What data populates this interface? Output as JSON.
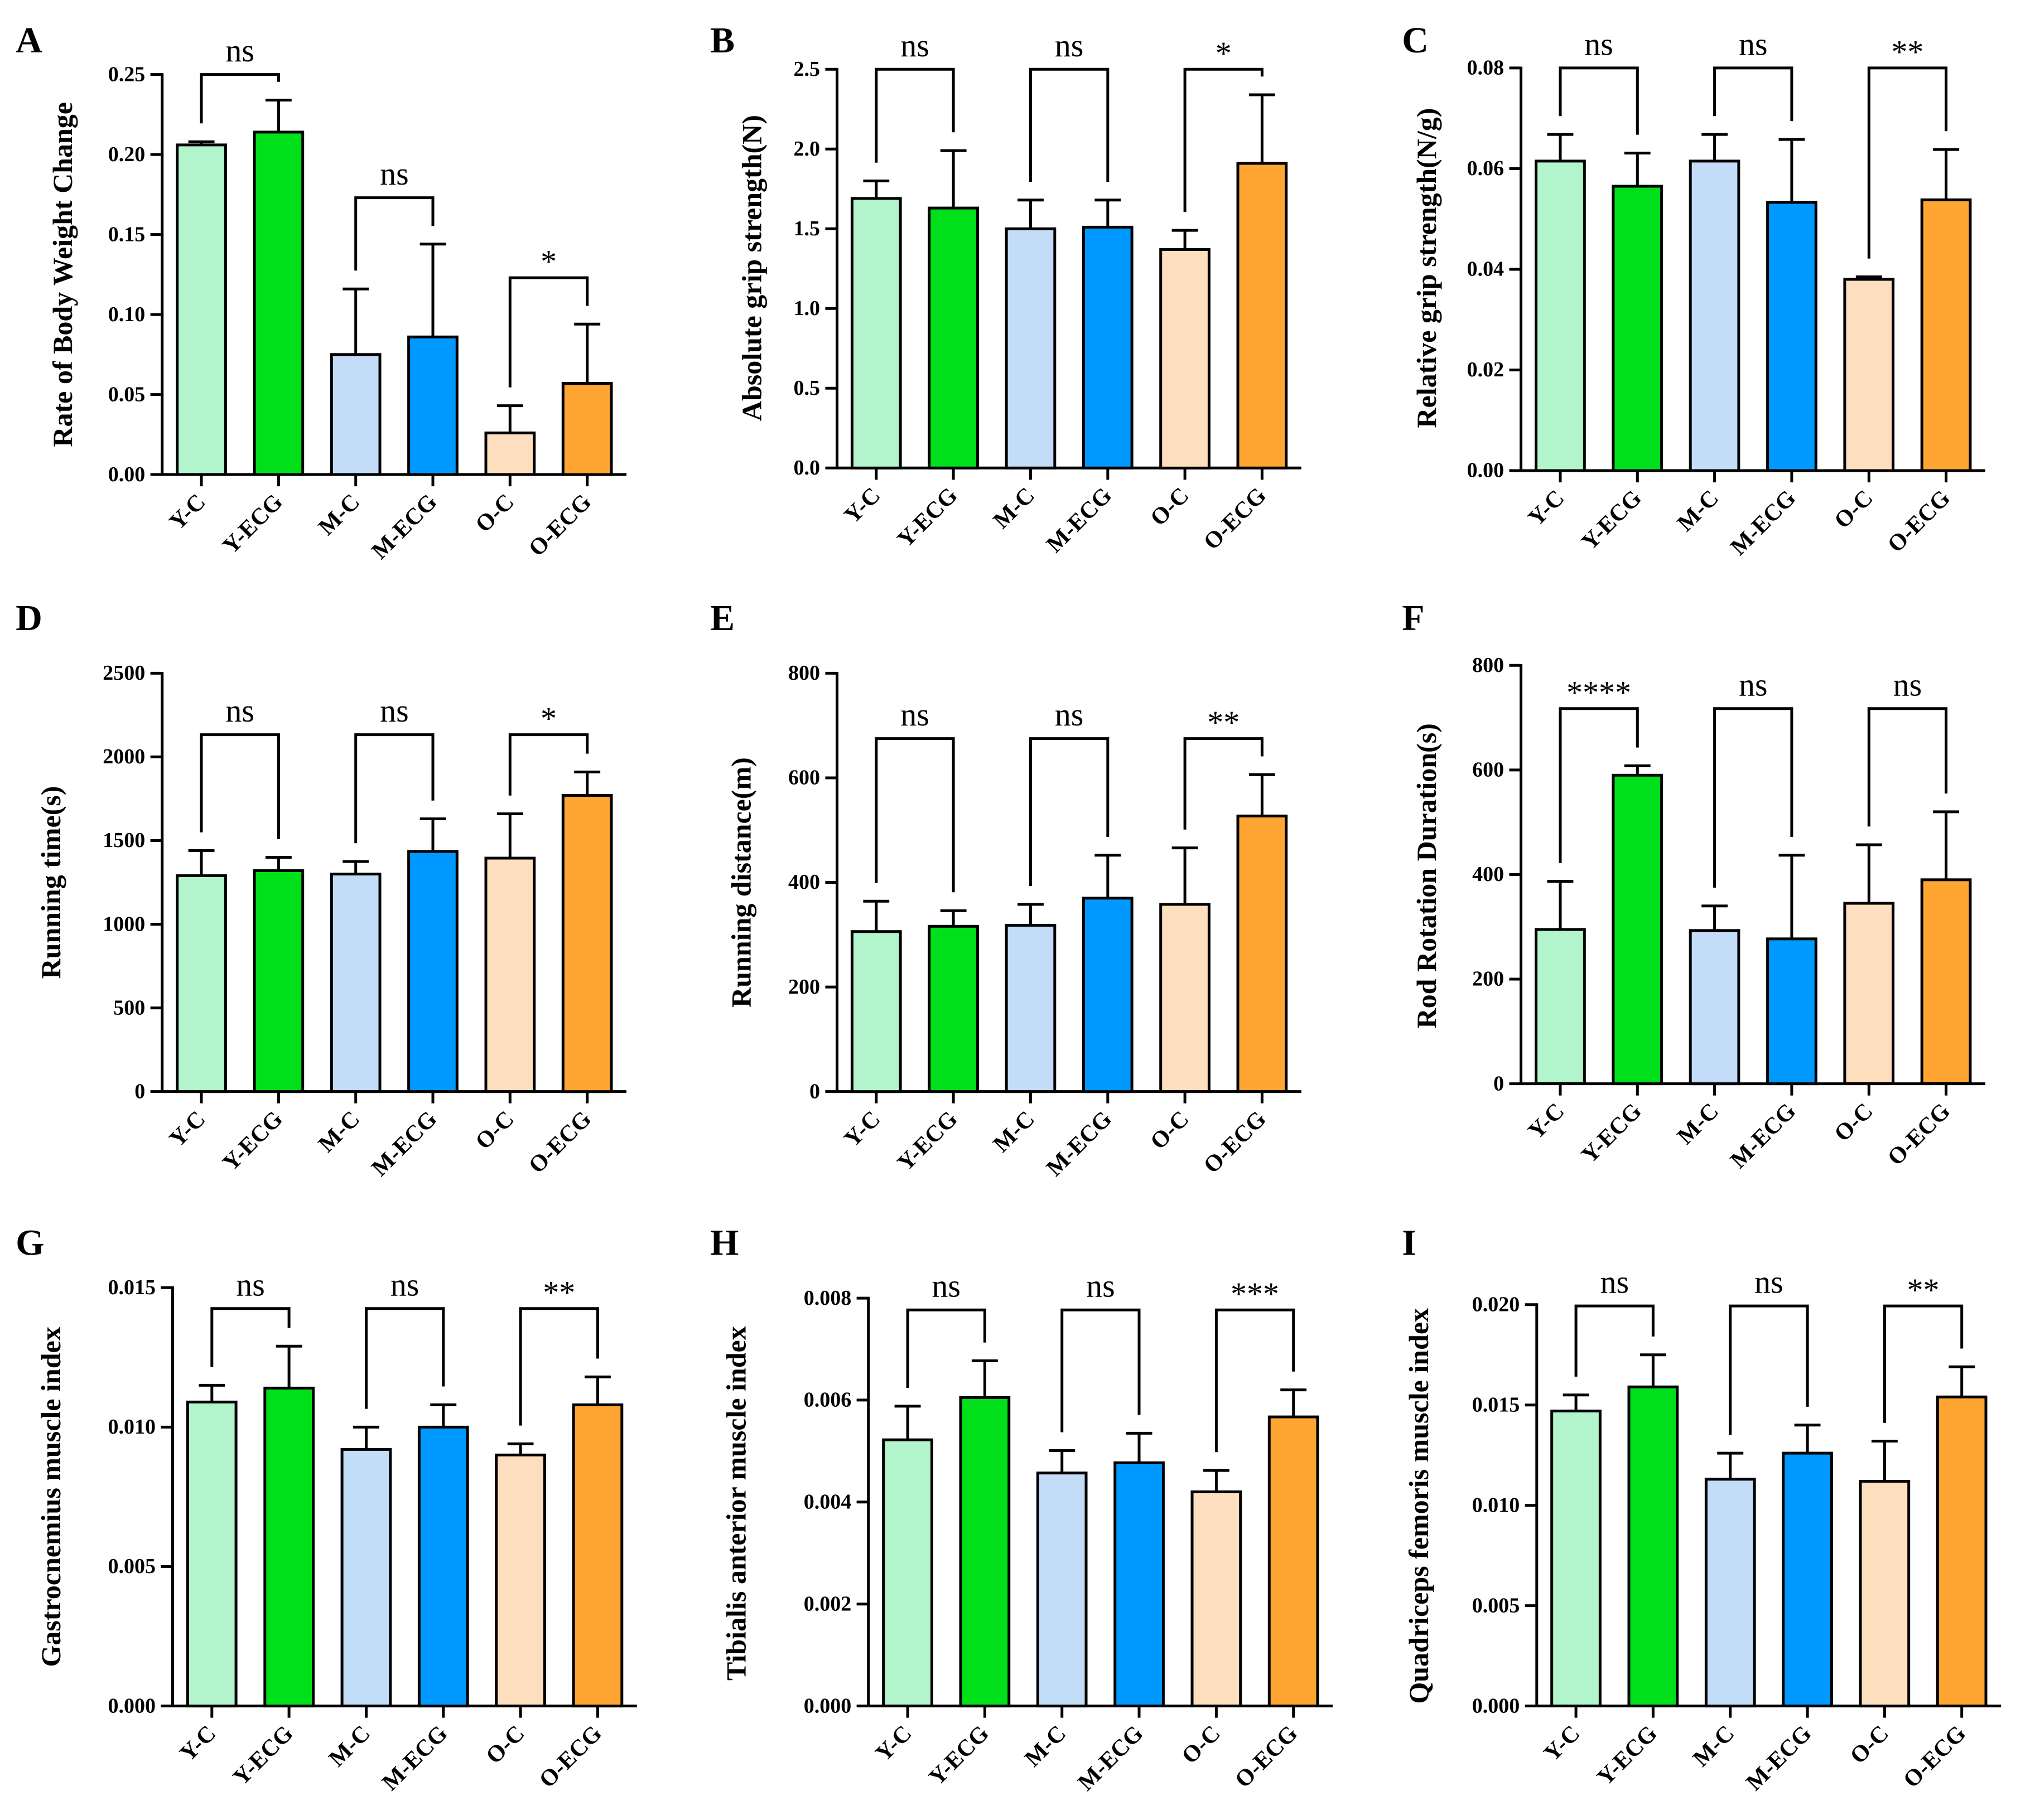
{
  "colors": [
    "#b2f5cd",
    "#00e01a",
    "#c3dcf8",
    "#0099ff",
    "#fddfbf",
    "#ffa531"
  ],
  "chart_data": [
    {
      "type": "bar",
      "panel": "A",
      "ylabel": "Rate of Body Weight Change",
      "categories": [
        "Y-C",
        "Y-ECG",
        "M-C",
        "M-ECG",
        "O-C",
        "O-ECG"
      ],
      "values": [
        0.206,
        0.214,
        0.075,
        0.086,
        0.026,
        0.057
      ],
      "errors": [
        0.002,
        0.02,
        0.041,
        0.058,
        0.017,
        0.037
      ],
      "ylim": [
        0,
        0.25
      ],
      "yticks": [
        "0.00",
        "0.05",
        "0.10",
        "0.15",
        "0.20",
        "0.25"
      ],
      "comparisons": [
        {
          "pair": [
            0,
            1
          ],
          "label": "ns",
          "level": 0.25
        },
        {
          "pair": [
            2,
            3
          ],
          "label": "ns",
          "level": 0.173
        },
        {
          "pair": [
            4,
            5
          ],
          "label": "*",
          "level": 0.123
        }
      ]
    },
    {
      "type": "bar",
      "panel": "B",
      "ylabel": "Absolute grip strength(N)",
      "categories": [
        "Y-C",
        "Y-ECG",
        "M-C",
        "M-ECG",
        "O-C",
        "O-ECG"
      ],
      "values": [
        1.69,
        1.63,
        1.5,
        1.51,
        1.37,
        1.91
      ],
      "errors": [
        0.11,
        0.36,
        0.18,
        0.17,
        0.12,
        0.43
      ],
      "ylim": [
        0,
        2.5
      ],
      "yticks": [
        "0.0",
        "0.5",
        "1.0",
        "1.5",
        "2.0",
        "2.5"
      ],
      "comparisons": [
        {
          "pair": [
            0,
            1
          ],
          "label": "ns",
          "level": 2.5
        },
        {
          "pair": [
            2,
            3
          ],
          "label": "ns",
          "level": 2.5
        },
        {
          "pair": [
            4,
            5
          ],
          "label": "*",
          "level": 2.5
        }
      ]
    },
    {
      "type": "bar",
      "panel": "C",
      "ylabel": "Relative grip strength(N/g)",
      "categories": [
        "Y-C",
        "Y-ECG",
        "M-C",
        "M-ECG",
        "O-C",
        "O-ECG"
      ],
      "values": [
        0.0615,
        0.0565,
        0.0615,
        0.0533,
        0.038,
        0.0538
      ],
      "errors": [
        0.0053,
        0.0066,
        0.0053,
        0.0125,
        0.0005,
        0.01
      ],
      "ylim": [
        0,
        0.08
      ],
      "yticks": [
        "0.00",
        "0.02",
        "0.04",
        "0.06",
        "0.08"
      ],
      "comparisons": [
        {
          "pair": [
            0,
            1
          ],
          "label": "ns",
          "level": 0.08
        },
        {
          "pair": [
            2,
            3
          ],
          "label": "ns",
          "level": 0.08
        },
        {
          "pair": [
            4,
            5
          ],
          "label": "**",
          "level": 0.08
        }
      ]
    },
    {
      "type": "bar",
      "panel": "D",
      "ylabel": "Running time(s)",
      "categories": [
        "Y-C",
        "Y-ECG",
        "M-C",
        "M-ECG",
        "O-C",
        "O-ECG"
      ],
      "values": [
        1290,
        1320,
        1300,
        1435,
        1395,
        1770
      ],
      "errors": [
        150,
        80,
        75,
        195,
        265,
        140
      ],
      "ylim": [
        0,
        2500
      ],
      "yticks": [
        "0",
        "500",
        "1000",
        "1500",
        "2000",
        "2500"
      ],
      "comparisons": [
        {
          "pair": [
            0,
            1
          ],
          "label": "ns",
          "level": 2130
        },
        {
          "pair": [
            2,
            3
          ],
          "label": "ns",
          "level": 2130
        },
        {
          "pair": [
            4,
            5
          ],
          "label": "*",
          "level": 2130
        }
      ]
    },
    {
      "type": "bar",
      "panel": "E",
      "ylabel": "Running distance(m)",
      "categories": [
        "Y-C",
        "Y-ECG",
        "M-C",
        "M-ECG",
        "O-C",
        "O-ECG"
      ],
      "values": [
        306,
        316,
        318,
        370,
        358,
        527
      ],
      "errors": [
        58,
        30,
        40,
        82,
        108,
        79
      ],
      "ylim": [
        0,
        800
      ],
      "yticks": [
        "0",
        "200",
        "400",
        "600",
        "800"
      ],
      "comparisons": [
        {
          "pair": [
            0,
            1
          ],
          "label": "ns",
          "level": 680
        },
        {
          "pair": [
            2,
            3
          ],
          "label": "ns",
          "level": 680
        },
        {
          "pair": [
            4,
            5
          ],
          "label": "**",
          "level": 680
        }
      ]
    },
    {
      "type": "bar",
      "panel": "F",
      "ylabel": "Rod Rotation Duration(s)",
      "categories": [
        "Y-C",
        "Y-ECG",
        "M-C",
        "M-ECG",
        "O-C",
        "O-ECG"
      ],
      "values": [
        295,
        590,
        293,
        277,
        345,
        390
      ],
      "errors": [
        92,
        18,
        47,
        160,
        112,
        130
      ],
      "ylim": [
        0,
        800
      ],
      "yticks": [
        "0",
        "200",
        "400",
        "600",
        "800"
      ],
      "comparisons": [
        {
          "pair": [
            0,
            1
          ],
          "label": "****",
          "level": 717
        },
        {
          "pair": [
            2,
            3
          ],
          "label": "ns",
          "level": 717
        },
        {
          "pair": [
            4,
            5
          ],
          "label": "ns",
          "level": 717
        }
      ]
    },
    {
      "type": "bar",
      "panel": "G",
      "ylabel": "Gastrocnemius muscle index",
      "categories": [
        "Y-C",
        "Y-ECG",
        "M-C",
        "M-ECG",
        "O-C",
        "O-ECG"
      ],
      "values": [
        0.0109,
        0.0114,
        0.0092,
        0.01,
        0.009,
        0.0108
      ],
      "errors": [
        0.0006,
        0.0015,
        0.0008,
        0.0008,
        0.0004,
        0.001
      ],
      "ylim": [
        0,
        0.015
      ],
      "yticks": [
        "0.000",
        "0.005",
        "0.010",
        "0.015"
      ],
      "comparisons": [
        {
          "pair": [
            0,
            1
          ],
          "label": "ns",
          "level": 0.014
        },
        {
          "pair": [
            2,
            3
          ],
          "label": "ns",
          "level": 0.014
        },
        {
          "pair": [
            4,
            5
          ],
          "label": "**",
          "level": 0.014
        }
      ]
    },
    {
      "type": "bar",
      "panel": "H",
      "ylabel": "Tibialis anterior muscle index",
      "categories": [
        "Y-C",
        "Y-ECG",
        "M-C",
        "M-ECG",
        "O-C",
        "O-ECG"
      ],
      "values": [
        0.00522,
        0.00605,
        0.00457,
        0.00477,
        0.0042,
        0.00567
      ],
      "errors": [
        0.00066,
        0.00072,
        0.00044,
        0.00058,
        0.00042,
        0.00053
      ],
      "ylim": [
        0,
        0.008
      ],
      "yticks": [
        "0.000",
        "0.002",
        "0.004",
        "0.006",
        "0.008"
      ],
      "comparisons": [
        {
          "pair": [
            0,
            1
          ],
          "label": "ns",
          "level": 0.0078
        },
        {
          "pair": [
            2,
            3
          ],
          "label": "ns",
          "level": 0.0078
        },
        {
          "pair": [
            4,
            5
          ],
          "label": "***",
          "level": 0.0078
        }
      ]
    },
    {
      "type": "bar",
      "panel": "I",
      "ylabel": "Quadriceps femoris muscle index",
      "categories": [
        "Y-C",
        "Y-ECG",
        "M-C",
        "M-ECG",
        "O-C",
        "O-ECG"
      ],
      "values": [
        0.0147,
        0.0159,
        0.0113,
        0.0126,
        0.0112,
        0.0154
      ],
      "errors": [
        0.0008,
        0.0016,
        0.0013,
        0.0014,
        0.002,
        0.0015
      ],
      "ylim": [
        0,
        0.02
      ],
      "yticks": [
        "0.000",
        "0.005",
        "0.010",
        "0.015",
        "0.020"
      ],
      "comparisons": [
        {
          "pair": [
            0,
            1
          ],
          "label": "ns",
          "level": 0.02
        },
        {
          "pair": [
            2,
            3
          ],
          "label": "ns",
          "level": 0.02
        },
        {
          "pair": [
            4,
            5
          ],
          "label": "**",
          "level": 0.02
        }
      ]
    }
  ]
}
